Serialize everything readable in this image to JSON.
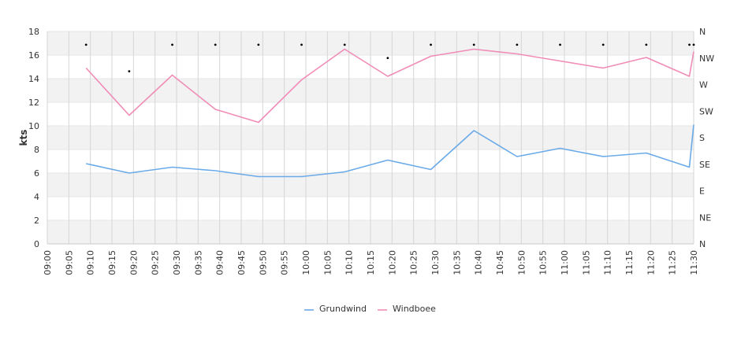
{
  "chart_data": {
    "type": "line",
    "ylabel": "kts",
    "ylim": [
      0,
      18
    ],
    "yticks": [
      0,
      2,
      4,
      6,
      8,
      10,
      12,
      14,
      16,
      18
    ],
    "y2ticks": [
      "N",
      "NE",
      "E",
      "SE",
      "S",
      "SW",
      "W",
      "NW",
      "N"
    ],
    "x_tick_labels": [
      "09:00",
      "09:05",
      "09:10",
      "09:15",
      "09:20",
      "09:25",
      "09:30",
      "09:35",
      "09:40",
      "09:45",
      "09:50",
      "09:55",
      "10:00",
      "10:05",
      "10:10",
      "10:15",
      "10:20",
      "10:25",
      "10:30",
      "10:35",
      "10:40",
      "10:45",
      "10:50",
      "10:55",
      "11:00",
      "11:05",
      "11:10",
      "11:15",
      "11:20",
      "11:25",
      "11:30"
    ],
    "x": [
      "09:09",
      "09:19",
      "09:29",
      "09:39",
      "09:49",
      "09:59",
      "10:09",
      "10:19",
      "10:29",
      "10:39",
      "10:49",
      "10:59",
      "11:09",
      "11:19",
      "11:29",
      "11:30"
    ],
    "series": [
      {
        "name": "Grundwind",
        "color": "#6aaae8",
        "values": [
          6.8,
          6.0,
          6.5,
          6.2,
          5.7,
          5.7,
          6.1,
          7.1,
          6.3,
          9.6,
          7.4,
          8.1,
          7.4,
          7.7,
          6.5,
          10.1
        ]
      },
      {
        "name": "Windboee",
        "color": "#f08cb6",
        "values": [
          14.9,
          10.9,
          14.3,
          11.4,
          10.3,
          13.9,
          16.5,
          14.2,
          15.9,
          16.5,
          16.1,
          15.5,
          14.9,
          15.8,
          14.2,
          16.3
        ]
      }
    ],
    "direction": {
      "color": "#000000",
      "points": [
        {
          "x": "09:09",
          "deg": 337.5
        },
        {
          "x": "09:19",
          "deg": 292.5
        },
        {
          "x": "09:29",
          "deg": 337.5
        },
        {
          "x": "09:39",
          "deg": 337.5
        },
        {
          "x": "09:49",
          "deg": 337.5
        },
        {
          "x": "09:59",
          "deg": 337.5
        },
        {
          "x": "10:09",
          "deg": 337.5
        },
        {
          "x": "10:19",
          "deg": 315
        },
        {
          "x": "10:29",
          "deg": 337.5
        },
        {
          "x": "10:39",
          "deg": 337.5
        },
        {
          "x": "10:49",
          "deg": 337.5
        },
        {
          "x": "10:59",
          "deg": 337.5
        },
        {
          "x": "11:09",
          "deg": 337.5
        },
        {
          "x": "11:19",
          "deg": 337.5
        },
        {
          "x": "11:29",
          "deg": 337.5
        },
        {
          "x": "11:30",
          "deg": 337.5
        }
      ]
    },
    "legend_position": "bottom-center",
    "grid": true,
    "band_color": "#f2f2f2",
    "grid_color": "#d6d6d6"
  }
}
